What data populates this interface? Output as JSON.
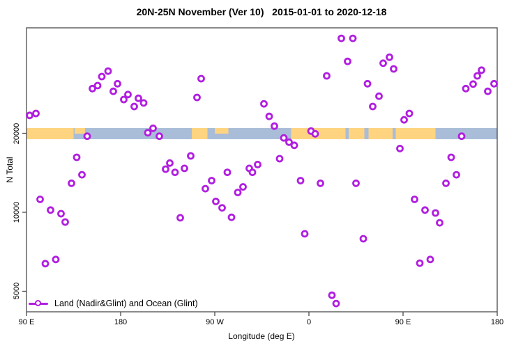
{
  "title": "20N-25N November (Ver 10)   2015-01-01 to 2020-12-18",
  "chart_data": {
    "type": "scatter",
    "title": "20N-25N November (Ver 10)   2015-01-01 to 2020-12-18",
    "xlabel": "Longitude (deg E)",
    "ylabel": "N Total",
    "x_axis": {
      "note": "longitude axis wraps eastward starting at 90E; deg is continuous 90..540",
      "range_deg": [
        90,
        540
      ],
      "ticks": [
        {
          "deg": 90,
          "label": "90 E"
        },
        {
          "deg": 180,
          "label": "180"
        },
        {
          "deg": 270,
          "label": "90 W"
        },
        {
          "deg": 360,
          "label": "0"
        },
        {
          "deg": 450,
          "label": "90 E"
        },
        {
          "deg": 540,
          "label": "180"
        }
      ]
    },
    "y_axis": {
      "scale": "log",
      "ticks": [
        {
          "value": 5000,
          "label": "5000"
        },
        {
          "value": 10000,
          "label": "10000"
        },
        {
          "value": 20000,
          "label": "20000"
        }
      ]
    },
    "legend": {
      "label": "Land (Nadir&Glint) and Ocean (Glint)"
    },
    "colors": {
      "marker": "#b11ee0",
      "ocean_band": "#a9bdd8",
      "land_band": "#ffd480",
      "frame": "#4a4a4a",
      "text": "#000000"
    },
    "map_band": {
      "center_value": 20000,
      "land_segments_deg": [
        [
          90,
          135,
          "full"
        ],
        [
          136,
          146,
          "top"
        ],
        [
          248,
          263,
          "full"
        ],
        [
          270,
          283,
          "top"
        ],
        [
          343,
          395,
          "full"
        ],
        [
          398,
          413,
          "full"
        ],
        [
          417,
          440,
          "full"
        ],
        [
          443,
          481,
          "full"
        ]
      ]
    },
    "series": [
      {
        "name": "Land (Nadir&Glint) and Ocean (Glint)",
        "points": [
          [
            93,
            23400
          ],
          [
            99,
            23800
          ],
          [
            153,
            29600
          ],
          [
            158,
            30400
          ],
          [
            162,
            32900
          ],
          [
            168,
            34500
          ],
          [
            173,
            28900
          ],
          [
            177,
            30900
          ],
          [
            183,
            26900
          ],
          [
            187,
            28100
          ],
          [
            193,
            25300
          ],
          [
            197,
            27200
          ],
          [
            202,
            26100
          ],
          [
            257,
            32300
          ],
          [
            253,
            27400
          ],
          [
            206,
            20100
          ],
          [
            211,
            20900
          ],
          [
            217,
            19500
          ],
          [
            148,
            19500
          ],
          [
            391,
            46000
          ],
          [
            402,
            46000
          ],
          [
            397,
            37600
          ],
          [
            377,
            33100
          ],
          [
            416,
            30900
          ],
          [
            427,
            27700
          ],
          [
            421,
            25300
          ],
          [
            317,
            25900
          ],
          [
            322,
            23200
          ],
          [
            327,
            21300
          ],
          [
            437,
            39000
          ],
          [
            431,
            37000
          ],
          [
            441,
            35200
          ],
          [
            525,
            34800
          ],
          [
            521,
            33100
          ],
          [
            517,
            30800
          ],
          [
            510,
            29600
          ],
          [
            537,
            30900
          ],
          [
            531,
            28900
          ],
          [
            456,
            23800
          ],
          [
            451,
            22500
          ],
          [
            138,
            16200
          ],
          [
            143,
            13900
          ],
          [
            133,
            12900
          ],
          [
            103,
            11200
          ],
          [
            113,
            10200
          ],
          [
            123,
            9880
          ],
          [
            127,
            9180
          ],
          [
            247,
            16400
          ],
          [
            227,
            15400
          ],
          [
            223,
            14600
          ],
          [
            232,
            14200
          ],
          [
            241,
            14700
          ],
          [
            282,
            14200
          ],
          [
            303,
            14700
          ],
          [
            306,
            14200
          ],
          [
            311,
            15200
          ],
          [
            267,
            13200
          ],
          [
            261,
            12300
          ],
          [
            297,
            12500
          ],
          [
            292,
            11900
          ],
          [
            271,
            11000
          ],
          [
            277,
            10400
          ],
          [
            237,
            9530
          ],
          [
            286,
            9570
          ],
          [
            336,
            19200
          ],
          [
            341,
            18500
          ],
          [
            346,
            18000
          ],
          [
            362,
            20400
          ],
          [
            366,
            19900
          ],
          [
            332,
            16000
          ],
          [
            352,
            13200
          ],
          [
            371,
            12900
          ],
          [
            405,
            12900
          ],
          [
            506,
            19500
          ],
          [
            447,
            17500
          ],
          [
            496,
            16200
          ],
          [
            501,
            13900
          ],
          [
            491,
            12900
          ],
          [
            461,
            11200
          ],
          [
            471,
            10200
          ],
          [
            481,
            9940
          ],
          [
            485,
            9120
          ],
          [
            108,
            6370
          ],
          [
            118,
            6610
          ],
          [
            356,
            8280
          ],
          [
            412,
            7930
          ],
          [
            382,
            4830
          ],
          [
            386,
            4490
          ],
          [
            466,
            6400
          ],
          [
            476,
            6610
          ]
        ]
      }
    ]
  }
}
